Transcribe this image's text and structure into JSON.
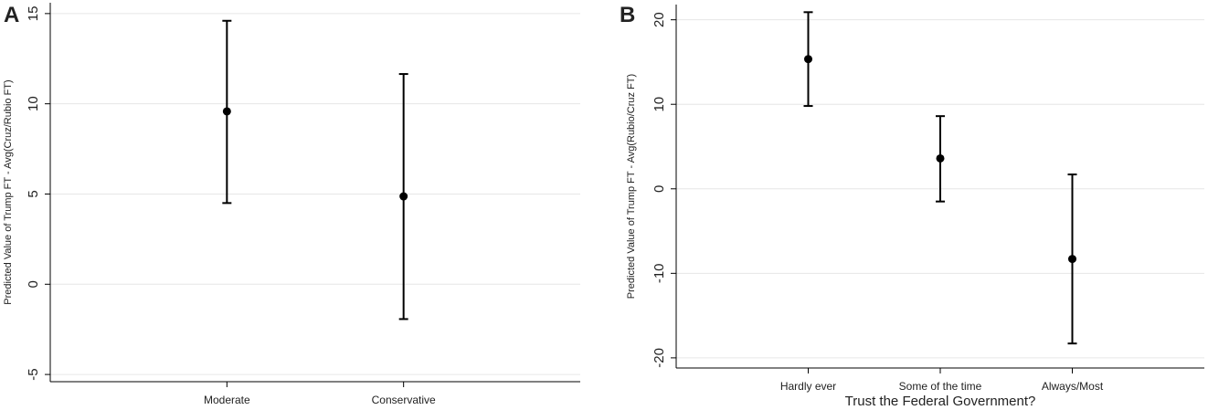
{
  "chart_data": [
    {
      "type": "errorbar",
      "panel": "A",
      "ylabel": "Predicted Value of Trump FT - Avg(Cruz/Rubio FT)",
      "categories": [
        "Moderate",
        "Conservative"
      ],
      "values": [
        9.58,
        4.87
      ],
      "lower": [
        4.5,
        -1.93
      ],
      "upper": [
        14.6,
        11.65
      ],
      "ylim": [
        -5.4,
        15.6
      ],
      "yticks": [
        -5,
        0,
        5,
        10,
        15
      ],
      "grid": true,
      "color": "#000000"
    },
    {
      "type": "errorbar",
      "panel": "B",
      "ylabel": "Predicted Value of Trump FT - Avg(Rubio/Cruz FT)",
      "xlabel": "Trust the Federal Government?",
      "categories": [
        "Hardly ever",
        "Some of the time",
        "Always/Most"
      ],
      "values": [
        15.35,
        3.6,
        -8.3
      ],
      "lower": [
        9.8,
        -1.5,
        -18.3
      ],
      "upper": [
        20.9,
        8.6,
        1.7
      ],
      "ylim": [
        -21.2,
        21.8
      ],
      "yticks": [
        -20,
        -10,
        0,
        10,
        20
      ],
      "grid": true,
      "color": "#000000"
    }
  ]
}
